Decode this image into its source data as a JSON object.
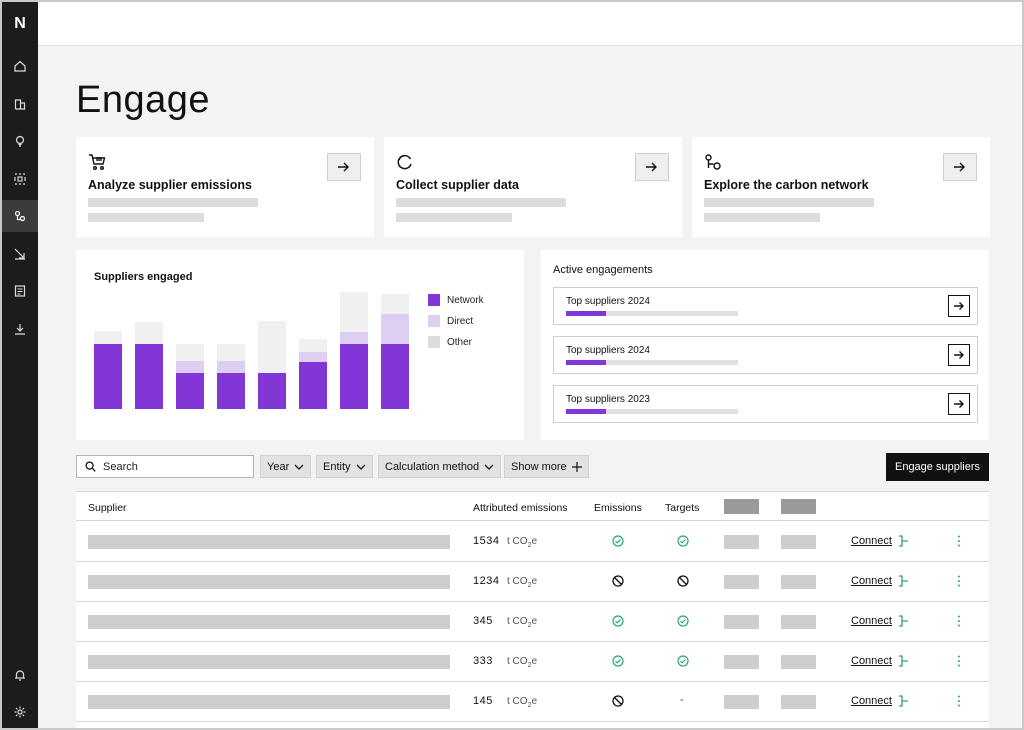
{
  "sidebar": {
    "logo": "N",
    "items": [
      {
        "name": "home-icon",
        "active": false
      },
      {
        "name": "buildings-icon",
        "active": false
      },
      {
        "name": "lightbulb-icon",
        "active": false
      },
      {
        "name": "frame-icon",
        "active": false
      },
      {
        "name": "network-icon",
        "active": true
      },
      {
        "name": "trend-icon",
        "active": false
      },
      {
        "name": "document-icon",
        "active": false
      },
      {
        "name": "download-icon",
        "active": false
      }
    ],
    "bottom_items": [
      {
        "name": "bell-icon"
      },
      {
        "name": "gear-icon"
      }
    ]
  },
  "page": {
    "title": "Engage"
  },
  "quick_cards": [
    {
      "title": "Analyze supplier emissions",
      "icon": "cart-icon"
    },
    {
      "title": "Collect supplier data",
      "icon": "refresh-circle-icon"
    },
    {
      "title": "Explore the carbon network",
      "icon": "network-nodes-icon"
    }
  ],
  "chart": {
    "title": "Suppliers engaged",
    "legend": [
      "Network",
      "Direct",
      "Other"
    ],
    "colors": {
      "network": "#8236d6",
      "direct": "#dccff3",
      "other": "#eeeeee"
    }
  },
  "chart_data": {
    "type": "bar",
    "stacked": true,
    "title": "Suppliers engaged",
    "categories": [
      "",
      "",
      "",
      "",
      "",
      "",
      "",
      ""
    ],
    "series": [
      {
        "name": "Network",
        "values": [
          65,
          65,
          36,
          36,
          36,
          47,
          65,
          65
        ]
      },
      {
        "name": "Direct",
        "values": [
          0,
          0,
          12,
          12,
          0,
          10,
          12,
          30
        ]
      },
      {
        "name": "Other",
        "values": [
          13,
          22,
          17,
          17,
          52,
          13,
          40,
          20
        ]
      }
    ],
    "ylim": [
      0,
      130
    ],
    "legend_position": "right",
    "grid": false
  },
  "engagements": {
    "title": "Active engagements",
    "items": [
      {
        "label": "Top suppliers 2024",
        "progress": 0.23
      },
      {
        "label": "Top suppliers 2024",
        "progress": 0.23
      },
      {
        "label": "Top suppliers 2023",
        "progress": 0.23
      }
    ]
  },
  "toolbar": {
    "search_placeholder": "Search",
    "filters": [
      "Year",
      "Entity",
      "Calculation method",
      "Show more"
    ],
    "primary_button": "Engage suppliers"
  },
  "table": {
    "headers": {
      "supplier": "Supplier",
      "attributed": "Attributed emissions",
      "emissions": "Emissions",
      "targets": "Targets"
    },
    "unit_prefix": "t CO",
    "unit_sub": "2",
    "unit_suffix": "e",
    "connect_label": "Connect",
    "rows": [
      {
        "value": "1534",
        "emissions": "check",
        "targets": "check"
      },
      {
        "value": "1234",
        "emissions": "none",
        "targets": "none"
      },
      {
        "value": "345",
        "emissions": "check",
        "targets": "check"
      },
      {
        "value": "333",
        "emissions": "check",
        "targets": "check"
      },
      {
        "value": "145",
        "emissions": "none",
        "targets": "-"
      }
    ]
  }
}
